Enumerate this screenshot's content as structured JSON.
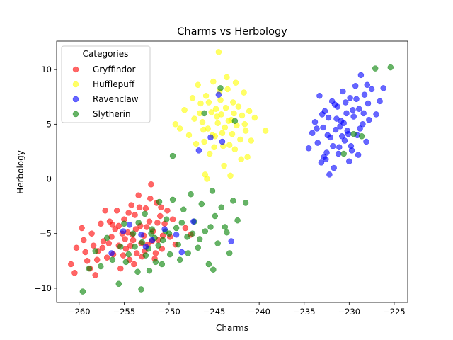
{
  "chart_data": {
    "type": "scatter",
    "title": "Charms vs Herbology",
    "xlabel": "Charms",
    "ylabel": "Herbology",
    "xlim": [
      -262.5,
      -223.5
    ],
    "ylim": [
      -11.3,
      12.6
    ],
    "xticks": [
      -260,
      -255,
      -250,
      -245,
      -240,
      -235,
      -230,
      -225
    ],
    "yticks": [
      -10,
      -5,
      0,
      5,
      10
    ],
    "grid": false,
    "legend": {
      "title": "Categories",
      "placement": "upper-left"
    },
    "marker_alpha": 0.6,
    "series": [
      {
        "name": "Gryffindor",
        "color": "#ff0000",
        "points": [
          [
            -260.9,
            -7.8
          ],
          [
            -260.5,
            -8.6
          ],
          [
            -260.3,
            -6.3
          ],
          [
            -259.7,
            -4.5
          ],
          [
            -259.3,
            -6.7
          ],
          [
            -259.1,
            -7.5
          ],
          [
            -258.8,
            -8.2
          ],
          [
            -258.6,
            -5.0
          ],
          [
            -258.4,
            -6.1
          ],
          [
            -258.2,
            -8.8
          ],
          [
            -257.9,
            -6.6
          ],
          [
            -257.6,
            -4.1
          ],
          [
            -257.3,
            -5.7
          ],
          [
            -257.1,
            -2.9
          ],
          [
            -256.9,
            -7.2
          ],
          [
            -256.6,
            -3.9
          ],
          [
            -256.4,
            -5.3
          ],
          [
            -256.2,
            -6.9
          ],
          [
            -256.0,
            -4.6
          ],
          [
            -255.8,
            -2.9
          ],
          [
            -255.6,
            -6.1
          ],
          [
            -255.4,
            -8.2
          ],
          [
            -255.2,
            -5.0
          ],
          [
            -255.0,
            -3.7
          ],
          [
            -254.8,
            -6.4
          ],
          [
            -254.6,
            -4.9
          ],
          [
            -254.4,
            -7.4
          ],
          [
            -254.2,
            -2.4
          ],
          [
            -254.0,
            -5.6
          ],
          [
            -253.8,
            -3.3
          ],
          [
            -253.6,
            -6.8
          ],
          [
            -253.4,
            -1.5
          ],
          [
            -253.2,
            -4.3
          ],
          [
            -253.0,
            -7.1
          ],
          [
            -252.8,
            -5.2
          ],
          [
            -252.6,
            -2.7
          ],
          [
            -252.4,
            -6.0
          ],
          [
            -252.2,
            -3.9
          ],
          [
            -252.0,
            -0.5
          ],
          [
            -251.8,
            -4.8
          ],
          [
            -251.6,
            -7.3
          ],
          [
            -251.4,
            -2.2
          ],
          [
            -251.2,
            -5.6
          ],
          [
            -251.0,
            -3.4
          ],
          [
            -250.8,
            -6.4
          ],
          [
            -250.5,
            -4.1
          ],
          [
            -250.2,
            -2.9
          ],
          [
            -249.9,
            -5.3
          ],
          [
            -249.6,
            -3.7
          ],
          [
            -249.3,
            -6.0
          ],
          [
            -255.6,
            -4.3
          ],
          [
            -254.9,
            -5.5
          ],
          [
            -254.3,
            -6.1
          ],
          [
            -253.7,
            -4.6
          ],
          [
            -253.1,
            -5.9
          ],
          [
            -252.5,
            -4.4
          ],
          [
            -251.9,
            -5.7
          ],
          [
            -251.3,
            -4.0
          ],
          [
            -250.7,
            -5.2
          ],
          [
            -256.7,
            -5.9
          ],
          [
            -257.4,
            -6.3
          ],
          [
            -255.1,
            -7.0
          ],
          [
            -253.9,
            -7.8
          ],
          [
            -252.7,
            -6.6
          ],
          [
            -251.5,
            -6.8
          ],
          [
            -254.5,
            -3.1
          ],
          [
            -253.3,
            -2.6
          ],
          [
            -252.1,
            -1.8
          ],
          [
            -250.9,
            -2.6
          ],
          [
            -256.3,
            -4.2
          ],
          [
            -248.2,
            -4.5
          ],
          [
            -247.6,
            -5.1
          ],
          [
            -258.0,
            -7.4
          ],
          [
            -259.5,
            -5.6
          ],
          [
            -254.1,
            -5.1
          ]
        ]
      },
      {
        "name": "Hufflepuff",
        "color": "#ffff00",
        "points": [
          [
            -246.8,
            8.6
          ],
          [
            -246.5,
            6.9
          ],
          [
            -246.3,
            5.2
          ],
          [
            -246.1,
            3.4
          ],
          [
            -245.9,
            7.6
          ],
          [
            -245.7,
            4.6
          ],
          [
            -245.5,
            2.3
          ],
          [
            -245.3,
            6.1
          ],
          [
            -245.1,
            8.9
          ],
          [
            -244.9,
            3.9
          ],
          [
            -244.7,
            5.7
          ],
          [
            -244.5,
            11.6
          ],
          [
            -244.3,
            7.2
          ],
          [
            -244.1,
            4.2
          ],
          [
            -243.9,
            1.2
          ],
          [
            -243.7,
            6.5
          ],
          [
            -243.5,
            8.2
          ],
          [
            -243.3,
            3.1
          ],
          [
            -243.1,
            5.4
          ],
          [
            -242.9,
            7.0
          ],
          [
            -242.7,
            2.7
          ],
          [
            -242.5,
            4.9
          ],
          [
            -242.3,
            6.6
          ],
          [
            -242.1,
            3.6
          ],
          [
            -241.9,
            5.8
          ],
          [
            -241.7,
            7.9
          ],
          [
            -241.5,
            4.4
          ],
          [
            -241.3,
            2.0
          ],
          [
            -241.1,
            6.2
          ],
          [
            -240.9,
            3.5
          ],
          [
            -247.2,
            5.5
          ],
          [
            -247.8,
            4.0
          ],
          [
            -248.3,
            6.3
          ],
          [
            -248.8,
            4.6
          ],
          [
            -249.3,
            5.0
          ],
          [
            -246.0,
            0.4
          ],
          [
            -245.8,
            0.0
          ],
          [
            -243.2,
            0.3
          ],
          [
            -242.0,
            1.8
          ],
          [
            -239.3,
            4.4
          ],
          [
            -244.6,
            5.1
          ],
          [
            -244.2,
            5.9
          ],
          [
            -243.8,
            4.7
          ],
          [
            -244.8,
            6.4
          ],
          [
            -243.4,
            5.3
          ],
          [
            -245.2,
            4.0
          ],
          [
            -244.0,
            3.0
          ],
          [
            -243.0,
            4.1
          ],
          [
            -245.6,
            7.0
          ],
          [
            -244.4,
            8.0
          ],
          [
            -242.6,
            8.8
          ],
          [
            -246.6,
            6.0
          ],
          [
            -247.4,
            7.4
          ],
          [
            -241.6,
            5.0
          ],
          [
            -242.8,
            6.0
          ],
          [
            -243.6,
            9.3
          ],
          [
            -245.0,
            2.9
          ],
          [
            -246.2,
            4.5
          ],
          [
            -240.5,
            5.6
          ],
          [
            -247.0,
            3.2
          ]
        ]
      },
      {
        "name": "Ravenclaw",
        "color": "#0000ff",
        "points": [
          [
            -234.5,
            2.8
          ],
          [
            -234.1,
            4.2
          ],
          [
            -233.8,
            5.2
          ],
          [
            -233.5,
            3.3
          ],
          [
            -233.3,
            7.6
          ],
          [
            -233.1,
            1.5
          ],
          [
            -232.9,
            4.7
          ],
          [
            -232.7,
            6.2
          ],
          [
            -232.5,
            2.4
          ],
          [
            -232.3,
            5.6
          ],
          [
            -232.1,
            3.8
          ],
          [
            -231.9,
            7.1
          ],
          [
            -231.7,
            1.0
          ],
          [
            -231.5,
            4.5
          ],
          [
            -231.3,
            6.6
          ],
          [
            -231.1,
            2.9
          ],
          [
            -230.9,
            5.3
          ],
          [
            -230.7,
            8.0
          ],
          [
            -230.5,
            3.5
          ],
          [
            -230.3,
            6.0
          ],
          [
            -230.1,
            4.1
          ],
          [
            -229.9,
            7.4
          ],
          [
            -229.7,
            2.6
          ],
          [
            -229.5,
            5.7
          ],
          [
            -229.3,
            8.5
          ],
          [
            -229.1,
            4.0
          ],
          [
            -228.9,
            6.4
          ],
          [
            -228.7,
            9.5
          ],
          [
            -228.5,
            5.0
          ],
          [
            -228.3,
            7.7
          ],
          [
            -228.1,
            3.4
          ],
          [
            -227.9,
            6.9
          ],
          [
            -227.5,
            8.2
          ],
          [
            -227.0,
            5.9
          ],
          [
            -226.6,
            7.1
          ],
          [
            -226.2,
            8.3
          ],
          [
            -232.2,
            0.4
          ],
          [
            -232.6,
            1.8
          ],
          [
            -230.0,
            1.6
          ],
          [
            -229.0,
            2.2
          ],
          [
            -231.0,
            4.8
          ],
          [
            -230.6,
            5.1
          ],
          [
            -230.2,
            4.4
          ],
          [
            -231.4,
            5.5
          ],
          [
            -230.8,
            3.9
          ],
          [
            -229.6,
            6.3
          ],
          [
            -231.8,
            3.0
          ],
          [
            -232.4,
            4.0
          ],
          [
            -229.2,
            7.3
          ],
          [
            -228.4,
            6.0
          ],
          [
            -233.0,
            5.9
          ],
          [
            -233.6,
            4.6
          ],
          [
            -230.4,
            7.0
          ],
          [
            -231.6,
            6.8
          ],
          [
            -228.8,
            4.6
          ],
          [
            -227.8,
            5.4
          ],
          [
            -232.8,
            2.0
          ],
          [
            -229.8,
            3.0
          ],
          [
            -231.2,
            2.3
          ],
          [
            -228.0,
            8.6
          ]
        ]
      },
      {
        "name": "Slytherin",
        "color": "#008000",
        "points": [
          [
            -259.6,
            -10.3
          ],
          [
            -258.9,
            -8.2
          ],
          [
            -258.2,
            -6.6
          ],
          [
            -257.6,
            -8.0
          ],
          [
            -256.9,
            -5.4
          ],
          [
            -256.3,
            -7.4
          ],
          [
            -255.6,
            -9.6
          ],
          [
            -255.0,
            -4.1
          ],
          [
            -254.5,
            -6.9
          ],
          [
            -254.0,
            -5.0
          ],
          [
            -253.5,
            -8.5
          ],
          [
            -253.1,
            -10.1
          ],
          [
            -252.7,
            -3.2
          ],
          [
            -252.3,
            -6.4
          ],
          [
            -251.9,
            -4.6
          ],
          [
            -251.5,
            -7.6
          ],
          [
            -251.1,
            -2.1
          ],
          [
            -250.7,
            -5.6
          ],
          [
            -250.3,
            -3.7
          ],
          [
            -249.9,
            -6.9
          ],
          [
            -249.6,
            -1.9
          ],
          [
            -249.2,
            -4.5
          ],
          [
            -248.8,
            -7.4
          ],
          [
            -248.4,
            -2.8
          ],
          [
            -248.0,
            -5.3
          ],
          [
            -247.6,
            -1.4
          ],
          [
            -247.2,
            -3.9
          ],
          [
            -246.8,
            -6.3
          ],
          [
            -246.4,
            -2.3
          ],
          [
            -246.0,
            -4.8
          ],
          [
            -245.6,
            -7.8
          ],
          [
            -245.2,
            -1.1
          ],
          [
            -244.9,
            -3.4
          ],
          [
            -244.6,
            -5.9
          ],
          [
            -244.2,
            -2.6
          ],
          [
            -243.8,
            -4.4
          ],
          [
            -243.3,
            -6.8
          ],
          [
            -242.9,
            -2.0
          ],
          [
            -242.4,
            -3.8
          ],
          [
            -241.5,
            -2.2
          ],
          [
            -249.6,
            2.1
          ],
          [
            -246.1,
            6.0
          ],
          [
            -244.3,
            8.3
          ],
          [
            -242.7,
            5.3
          ],
          [
            -245.1,
            -8.3
          ],
          [
            -230.6,
            2.3
          ],
          [
            -229.5,
            4.1
          ],
          [
            -228.6,
            3.9
          ],
          [
            -227.1,
            10.1
          ],
          [
            -225.4,
            10.2
          ],
          [
            -253.0,
            -5.8
          ],
          [
            -252.0,
            -5.0
          ],
          [
            -251.2,
            -6.1
          ],
          [
            -250.4,
            -4.8
          ],
          [
            -253.8,
            -6.2
          ],
          [
            -252.6,
            -7.0
          ],
          [
            -251.6,
            -5.4
          ],
          [
            -250.0,
            -5.0
          ],
          [
            -248.6,
            -4.0
          ],
          [
            -247.4,
            -5.0
          ],
          [
            -255.4,
            -6.2
          ],
          [
            -254.8,
            -7.6
          ],
          [
            -253.4,
            -4.0
          ],
          [
            -252.2,
            -8.4
          ],
          [
            -250.8,
            -7.8
          ],
          [
            -249.0,
            -6.0
          ],
          [
            -247.9,
            -6.8
          ],
          [
            -246.6,
            -5.5
          ],
          [
            -245.4,
            -4.4
          ],
          [
            -243.6,
            -4.9
          ]
        ]
      },
      {
        "name": "Ravenclaw",
        "color": "#0000ff",
        "points": [
          [
            -244.5,
            7.7
          ],
          [
            -245.4,
            3.8
          ],
          [
            -244.1,
            3.4
          ],
          [
            -246.7,
            2.6
          ],
          [
            -253.1,
            -5.1
          ],
          [
            -255.1,
            -4.8
          ],
          [
            -250.5,
            -4.6
          ],
          [
            -251.9,
            -5.6
          ],
          [
            -256.4,
            -6.8
          ],
          [
            -249.2,
            -5.1
          ],
          [
            -252.6,
            -6.2
          ],
          [
            -247.3,
            -3.9
          ],
          [
            -254.4,
            -4.2
          ],
          [
            -248.6,
            -6.7
          ],
          [
            -243.1,
            -5.7
          ]
        ],
        "legend_hidden": true
      }
    ]
  }
}
